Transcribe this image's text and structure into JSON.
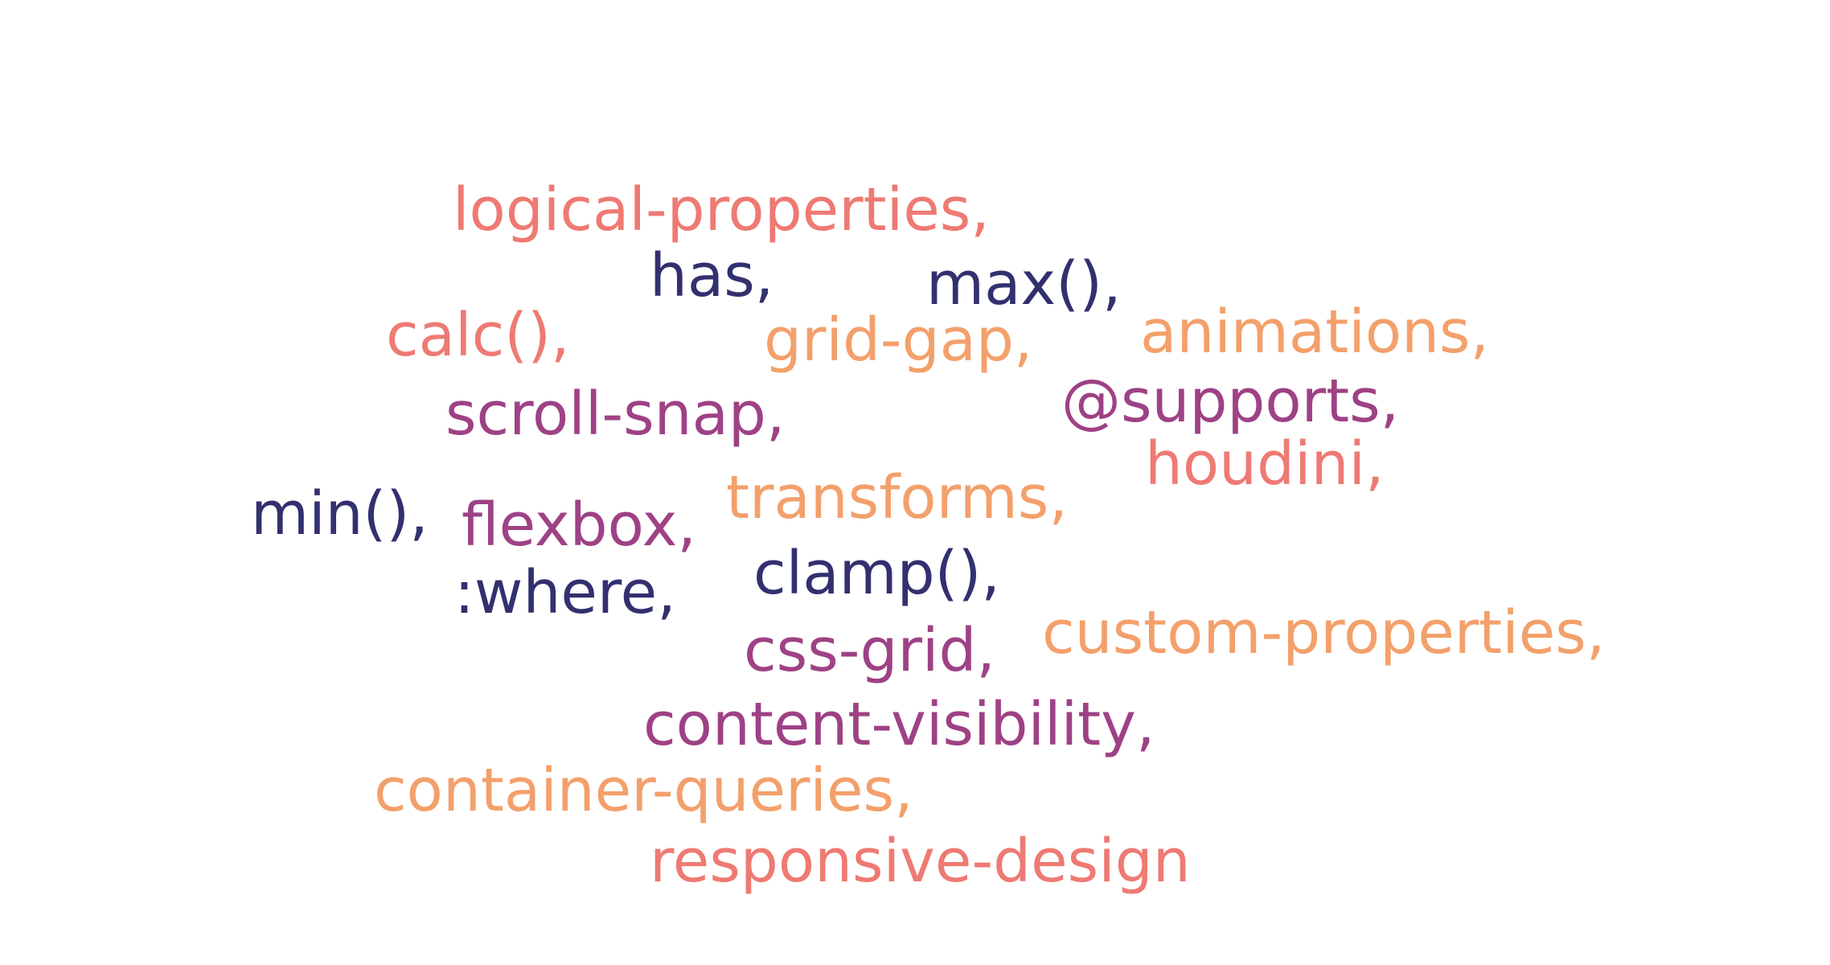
{
  "colors": {
    "salmon": "#ee7a73",
    "orange": "#f3a06b",
    "purple": "#9e4185",
    "navy": "#32306f"
  },
  "words": [
    {
      "text": "logical-properties,",
      "color": "#ee7a73"
    },
    {
      "text": "has,",
      "color": "#32306f"
    },
    {
      "text": "max(),",
      "color": "#32306f"
    },
    {
      "text": "calc(),",
      "color": "#ee7a73"
    },
    {
      "text": "grid-gap,",
      "color": "#f3a06b"
    },
    {
      "text": "animations,",
      "color": "#f3a06b"
    },
    {
      "text": "scroll-snap,",
      "color": "#9e4185"
    },
    {
      "text": "@supports,",
      "color": "#9e4185"
    },
    {
      "text": "houdini,",
      "color": "#ee7a73"
    },
    {
      "text": "transforms,",
      "color": "#f3a06b"
    },
    {
      "text": "min(),",
      "color": "#32306f"
    },
    {
      "text": "flexbox,",
      "color": "#9e4185"
    },
    {
      "text": "clamp(),",
      "color": "#32306f"
    },
    {
      "text": ":where,",
      "color": "#32306f"
    },
    {
      "text": "css-grid,",
      "color": "#9e4185"
    },
    {
      "text": "custom-properties,",
      "color": "#f3a06b"
    },
    {
      "text": "content-visibility,",
      "color": "#9e4185"
    },
    {
      "text": "container-queries,",
      "color": "#f3a06b"
    },
    {
      "text": "responsive-design",
      "color": "#ee7a73"
    }
  ]
}
